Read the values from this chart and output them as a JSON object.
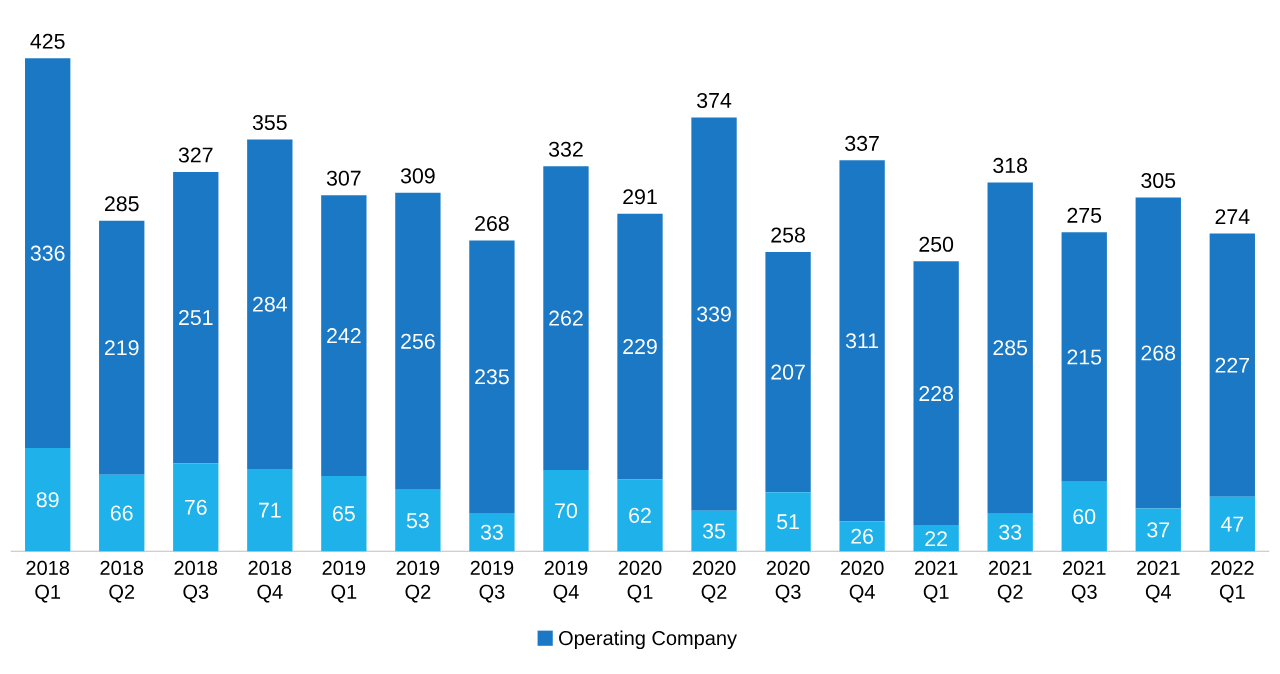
{
  "chart_data": {
    "type": "bar",
    "stacked": true,
    "categories": [
      "2018 Q1",
      "2018 Q2",
      "2018 Q3",
      "2018 Q4",
      "2019 Q1",
      "2019 Q2",
      "2019 Q3",
      "2019 Q4",
      "2020 Q1",
      "2020 Q2",
      "2020 Q3",
      "2020 Q4",
      "2021 Q1",
      "2021 Q2",
      "2021 Q3",
      "2021 Q4",
      "2022 Q1"
    ],
    "series": [
      {
        "color": "#1fb2ea",
        "values": [
          89,
          66,
          76,
          71,
          65,
          53,
          33,
          70,
          62,
          35,
          51,
          26,
          22,
          33,
          60,
          37,
          47
        ]
      },
      {
        "name": "Operating Company",
        "color": "#1b78c4",
        "values": [
          336,
          219,
          251,
          284,
          242,
          256,
          235,
          262,
          229,
          339,
          207,
          311,
          228,
          285,
          215,
          268,
          227
        ]
      }
    ],
    "totals": [
      "425",
      "285",
      "327",
      "355",
      "307",
      "309",
      "268",
      "332",
      "291",
      "374",
      "258",
      "337",
      "250",
      "318",
      "275",
      "305",
      "274"
    ],
    "data_labels": true,
    "legend": "bottom"
  }
}
